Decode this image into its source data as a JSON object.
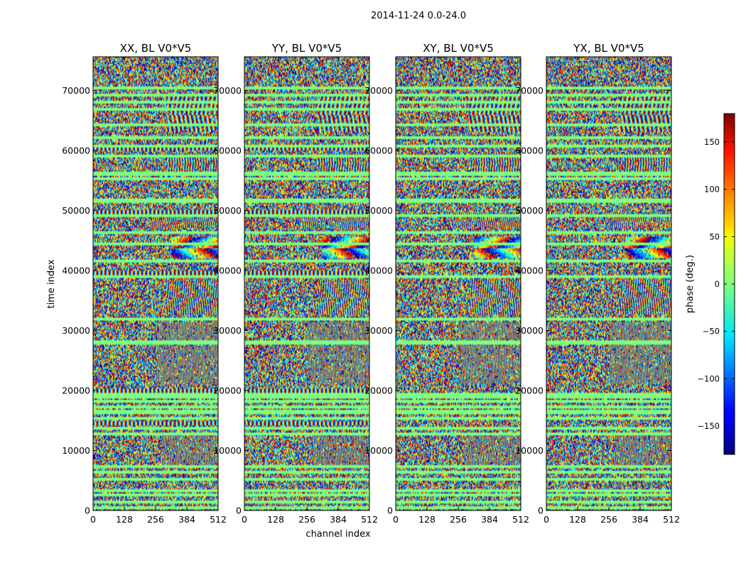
{
  "chart_data": {
    "type": "heatmap",
    "suptitle": "2014-11-24 0.0-24.0",
    "xlabel": "channel index",
    "ylabel": "time index",
    "xlim": [
      0,
      512
    ],
    "ylim": [
      0,
      75600
    ],
    "xticks": [
      0,
      128,
      256,
      384,
      512
    ],
    "xtick_labels": [
      "0",
      "128",
      "256",
      "384",
      "512"
    ],
    "yticks": [
      0,
      10000,
      20000,
      30000,
      40000,
      50000,
      60000,
      70000
    ],
    "ytick_labels": [
      "0",
      "10000",
      "20000",
      "30000",
      "40000",
      "50000",
      "60000",
      "70000"
    ],
    "panels": [
      {
        "title": "XX, BL V0*V5"
      },
      {
        "title": "YY, BL V0*V5"
      },
      {
        "title": "XY, BL V0*V5"
      },
      {
        "title": "YX, BL V0*V5"
      }
    ],
    "colorbar": {
      "label": "phase (deg.)",
      "min": -180,
      "max": 180,
      "ticks": [
        -150,
        -100,
        -50,
        0,
        50,
        100,
        150
      ],
      "tick_labels": [
        "−150",
        "−100",
        "−50",
        "0",
        "50",
        "100",
        "150"
      ],
      "colormap": "jet"
    },
    "noise_note": "phase visibility data; random phase outside RFI/fringe bands"
  }
}
